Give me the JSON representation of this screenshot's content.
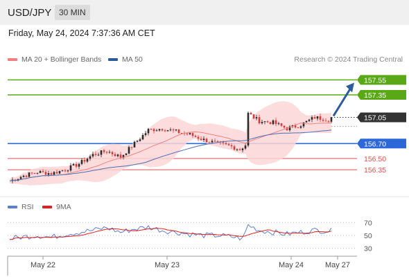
{
  "header": {
    "symbol": "USD/JPY",
    "timeframe": "30 MIN"
  },
  "datetime": "Friday, May 24, 2024 7:37:36 AM CET",
  "legend": {
    "ma20_label": "MA 20 + Bollinger Bands",
    "ma50_label": "MA 50",
    "research": "Research © 2024 Trading Central"
  },
  "rsi_legend": {
    "rsi_label": "RSI",
    "ma_label": "9MA"
  },
  "colors": {
    "green_level": "#5aa816",
    "blue_level": "#2d68d8",
    "red_level": "#e64d4d",
    "candle_up": "#2a2a2a",
    "candle_down": "#d83a3a",
    "bb_fill": "#fbd6d6",
    "ma20": "#f08080",
    "ma50": "#4a6fb5",
    "rsi": "#5a7fd0",
    "rsi_ma": "#e02020",
    "arrow": "#2e5a9e",
    "current_price_bg": "#333333"
  },
  "chart_data": [
    {
      "type": "candlestick",
      "symbol": "USD/JPY",
      "timeframe": "30 MIN",
      "x_tick_labels": [
        "May 22",
        "May 23",
        "May 24",
        "May 27"
      ],
      "ylim": [
        156.12,
        157.72
      ],
      "current_price": 157.05,
      "levels": [
        {
          "value": 157.55,
          "label": "157.55",
          "style": "resistance"
        },
        {
          "value": 157.35,
          "label": "157.35",
          "style": "resistance"
        },
        {
          "value": 156.7,
          "label": "156.70",
          "style": "pivot"
        },
        {
          "value": 156.5,
          "label": "156.50",
          "style": "support"
        },
        {
          "value": 156.35,
          "label": "156.35",
          "style": "support"
        }
      ],
      "price_path": [
        [
          0,
          156.2
        ],
        [
          5,
          156.27
        ],
        [
          10,
          156.32
        ],
        [
          15,
          156.3
        ],
        [
          20,
          156.35
        ],
        [
          25,
          156.43
        ],
        [
          30,
          156.55
        ],
        [
          35,
          156.6
        ],
        [
          40,
          156.52
        ],
        [
          45,
          156.7
        ],
        [
          50,
          156.88
        ],
        [
          55,
          156.9
        ],
        [
          60,
          156.86
        ],
        [
          65,
          156.82
        ],
        [
          70,
          156.75
        ],
        [
          75,
          156.7
        ],
        [
          80,
          156.66
        ],
        [
          83,
          156.62
        ],
        [
          85,
          156.68
        ],
        [
          86,
          157.1
        ],
        [
          90,
          157.0
        ],
        [
          95,
          156.98
        ],
        [
          100,
          156.9
        ],
        [
          105,
          156.95
        ],
        [
          110,
          157.05
        ],
        [
          115,
          157.02
        ],
        [
          116,
          157.05
        ]
      ],
      "indicators": [
        "MA 20 + Bollinger Bands",
        "MA 50"
      ]
    },
    {
      "type": "line",
      "name": "RSI panel",
      "series": [
        {
          "name": "RSI",
          "color": "#5a7fd0"
        },
        {
          "name": "9MA",
          "color": "#e02020"
        }
      ],
      "y_tick_labels": [
        "70",
        "50",
        "30"
      ],
      "ylim": [
        20,
        80
      ],
      "rsi_path": [
        [
          0,
          45
        ],
        [
          5,
          48
        ],
        [
          10,
          50
        ],
        [
          15,
          47
        ],
        [
          20,
          52
        ],
        [
          25,
          55
        ],
        [
          30,
          58
        ],
        [
          35,
          62
        ],
        [
          40,
          55
        ],
        [
          45,
          60
        ],
        [
          50,
          63
        ],
        [
          55,
          58
        ],
        [
          60,
          55
        ],
        [
          65,
          52
        ],
        [
          70,
          50
        ],
        [
          75,
          50
        ],
        [
          80,
          48
        ],
        [
          84,
          45
        ],
        [
          86,
          66
        ],
        [
          90,
          58
        ],
        [
          95,
          55
        ],
        [
          100,
          52
        ],
        [
          105,
          55
        ],
        [
          110,
          58
        ],
        [
          116,
          57
        ]
      ]
    }
  ]
}
